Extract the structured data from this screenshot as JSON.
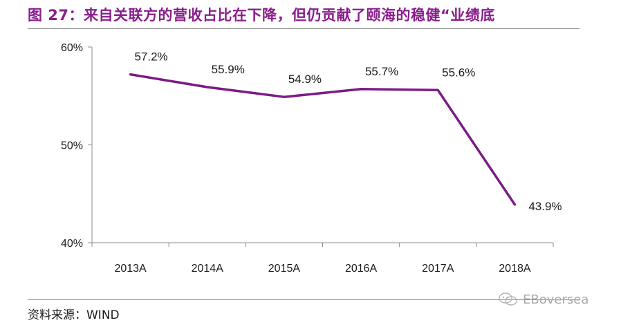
{
  "title": "图 27：来自关联方的营收占比在下降，但仍贡献了颐海的稳健“业绩底",
  "source": "资料来源：WIND",
  "watermark": "EBoversea",
  "colors": {
    "title": "#8a1d8c",
    "line": "#7b1a86"
  },
  "chart_data": {
    "type": "line",
    "categories": [
      "2013A",
      "2014A",
      "2015A",
      "2016A",
      "2017A",
      "2018A"
    ],
    "series": [
      {
        "values": [
          57.2,
          55.9,
          54.9,
          55.7,
          55.6,
          43.9
        ]
      }
    ],
    "data_labels": [
      "57.2%",
      "55.9%",
      "54.9%",
      "55.7%",
      "55.6%",
      "43.9%"
    ],
    "yticks": [
      "60%",
      "50%",
      "40%"
    ],
    "ytick_values": [
      60,
      50,
      40
    ],
    "ylim": [
      40,
      60
    ],
    "xlabel": "",
    "ylabel": "",
    "grid": false,
    "legend": "none"
  }
}
